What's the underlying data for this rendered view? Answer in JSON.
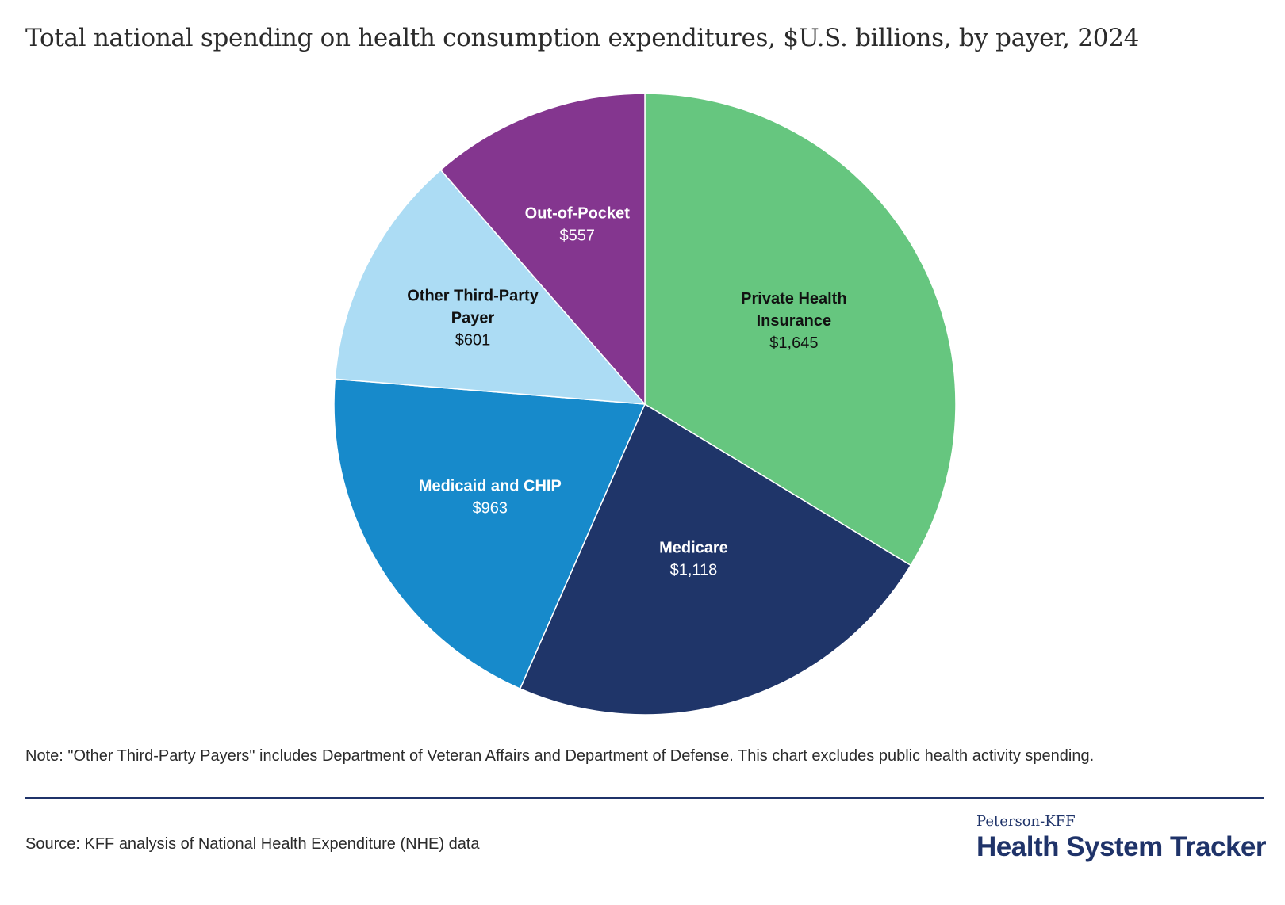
{
  "title": "Total national spending on health consumption expenditures, $U.S. billions, by payer, 2024",
  "chart_data": {
    "type": "pie",
    "title": "Total national spending on health consumption expenditures, $U.S. billions, by payer, 2024",
    "units": "$U.S. billions",
    "start": "12 o'clock, clockwise",
    "slices": [
      {
        "name": "Private Health Insurance",
        "label_lines": [
          "Private Health",
          "Insurance"
        ],
        "value": 1645,
        "value_label": "$1,645",
        "color": "#66c67f",
        "label_color": "#111111"
      },
      {
        "name": "Medicare",
        "label_lines": [
          "Medicare"
        ],
        "value": 1118,
        "value_label": "$1,118",
        "color": "#1f3569",
        "label_color": "#ffffff"
      },
      {
        "name": "Medicaid and CHIP",
        "label_lines": [
          "Medicaid and CHIP"
        ],
        "value": 963,
        "value_label": "$963",
        "color": "#178acb",
        "label_color": "#ffffff"
      },
      {
        "name": "Other Third-Party Payer",
        "label_lines": [
          "Other Third-Party",
          "Payer"
        ],
        "value": 601,
        "value_label": "$601",
        "color": "#acdcf4",
        "label_color": "#111111"
      },
      {
        "name": "Out-of-Pocket",
        "label_lines": [
          "Out-of-Pocket"
        ],
        "value": 557,
        "value_label": "$557",
        "color": "#84368f",
        "label_color": "#ffffff"
      }
    ]
  },
  "note": "Note: \"Other Third-Party Payers\" includes Department of Veteran Affairs and Department of Defense. This chart excludes public health activity spending.",
  "source": "Source: KFF analysis of National Health Expenditure (NHE) data",
  "brand": {
    "small": "Peterson-KFF",
    "big": "Health System Tracker"
  }
}
